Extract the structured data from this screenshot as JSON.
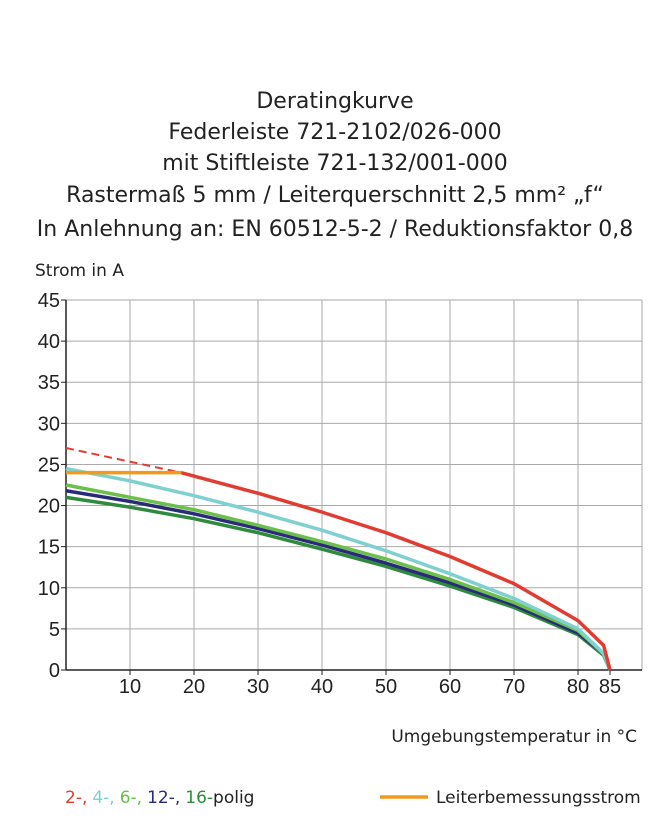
{
  "chart_data": {
    "type": "line",
    "title_lines": [
      "Deratingkurve",
      "Federleiste 721-2102/026-000",
      "mit Stiftleiste 721-132/001-000",
      "Rastermaß 5 mm / Leiterquerschnitt 2,5 mm² „f“",
      "In Anlehnung an: EN 60512-5-2 / Reduktionsfaktor 0,8"
    ],
    "y_label": "Strom in A",
    "x_label": "Umgebungstemperatur in °C",
    "xlim": [
      0,
      90
    ],
    "ylim": [
      0,
      45
    ],
    "xticks": [
      10,
      20,
      30,
      40,
      50,
      60,
      70,
      80,
      85
    ],
    "xgrid": [
      10,
      20,
      30,
      40,
      50,
      60,
      70,
      80,
      90
    ],
    "yticks": [
      0,
      5,
      10,
      15,
      20,
      25,
      30,
      35,
      40,
      45
    ],
    "grid": true,
    "series": [
      {
        "name": "16-",
        "color": "#2e8b3e",
        "x": [
          0,
          10,
          20,
          30,
          40,
          50,
          60,
          70,
          80,
          84,
          85
        ],
        "values": [
          21,
          19.8,
          18.4,
          16.7,
          14.7,
          12.6,
          10.2,
          7.6,
          4.3,
          1.8,
          0
        ]
      },
      {
        "name": "12-,",
        "color": "#2a2a7a",
        "x": [
          0,
          10,
          20,
          30,
          40,
          50,
          60,
          70,
          80,
          84,
          85
        ],
        "values": [
          21.8,
          20.5,
          19,
          17.2,
          15.2,
          13,
          10.6,
          7.9,
          4.5,
          2,
          0
        ]
      },
      {
        "name": "6-,",
        "color": "#6cbf4a",
        "x": [
          0,
          10,
          20,
          30,
          40,
          50,
          60,
          70,
          80,
          84,
          85
        ],
        "values": [
          22.5,
          21,
          19.5,
          17.6,
          15.6,
          13.5,
          11,
          8.2,
          4.8,
          2,
          0
        ]
      },
      {
        "name": "4-,",
        "color": "#7fd0d0",
        "x": [
          0,
          10,
          20,
          30,
          40,
          50,
          60,
          70,
          80,
          84,
          85
        ],
        "values": [
          24.5,
          23,
          21.2,
          19.2,
          17,
          14.5,
          11.7,
          8.7,
          5,
          2,
          0
        ]
      },
      {
        "name": "2-,",
        "color": "#e03c31",
        "x": [
          18,
          30,
          40,
          50,
          60,
          70,
          80,
          84,
          85
        ],
        "values": [
          24,
          21.5,
          19.2,
          16.7,
          13.8,
          10.5,
          6,
          3,
          0
        ]
      },
      {
        "name": "Leiterbemessungsstrom",
        "color": "#f39a1e",
        "x": [
          0,
          18
        ],
        "values": [
          24,
          24
        ]
      }
    ],
    "extrapolations": [
      {
        "color": "#e03c31",
        "x": [
          0,
          18
        ],
        "values": [
          27,
          24
        ]
      }
    ],
    "legend_suffix": "polig"
  }
}
